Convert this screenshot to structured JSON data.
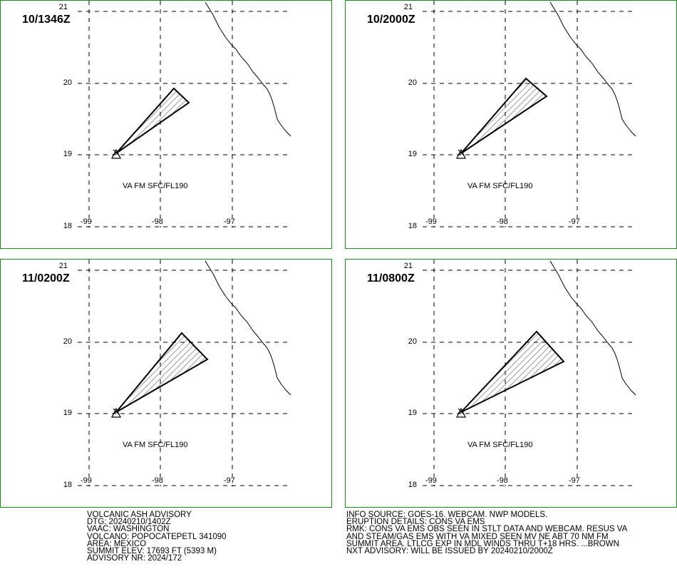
{
  "panels": [
    {
      "time": "10/1346Z",
      "va_label": "VA FM SFC/FL190"
    },
    {
      "time": "10/2000Z",
      "va_label": "VA FM SFC/FL190"
    },
    {
      "time": "11/0200Z",
      "va_label": "VA FM SFC/FL190"
    },
    {
      "time": "11/0800Z",
      "va_label": "VA FM SFC/FL190"
    }
  ],
  "axes": {
    "lat_labels": [
      "21",
      "20",
      "19",
      "18"
    ],
    "lon_labels": [
      "-99",
      "-98",
      "-97"
    ]
  },
  "advisory_left": [
    "VOLCANIC ASH ADVISORY",
    "DTG: 20240210/1402Z",
    "VAAC: WASHINGTON",
    "VOLCANO: POPOCATEPETL 341090",
    "AREA: MEXICO",
    "SUMMIT ELEV: 17693 FT (5393 M)",
    "ADVISORY NR: 2024/172"
  ],
  "advisory_right": [
    "INFO SOURCE: GOES-16. WEBCAM. NWP MODELS.",
    "ERUPTION DETAILS: CONS VA EMS",
    "RMK: CONS VA EMS OBS SEEN IN STLT DATA AND WEBCAM. RESUS VA",
    "AND STEAM/GAS EMS WITH VA MIXED SEEN MV NE ABT 70 NM FM",
    "SUMMIT AREA. LTLCG EXP IN MDL WINDS THRU T+18 HRS. ...BROWN",
    "NXT ADVISORY: WILL BE ISSUED BY 20240210/2000Z"
  ],
  "colors": {
    "panel_border": "#1a8a1a",
    "lines": "#000000"
  }
}
